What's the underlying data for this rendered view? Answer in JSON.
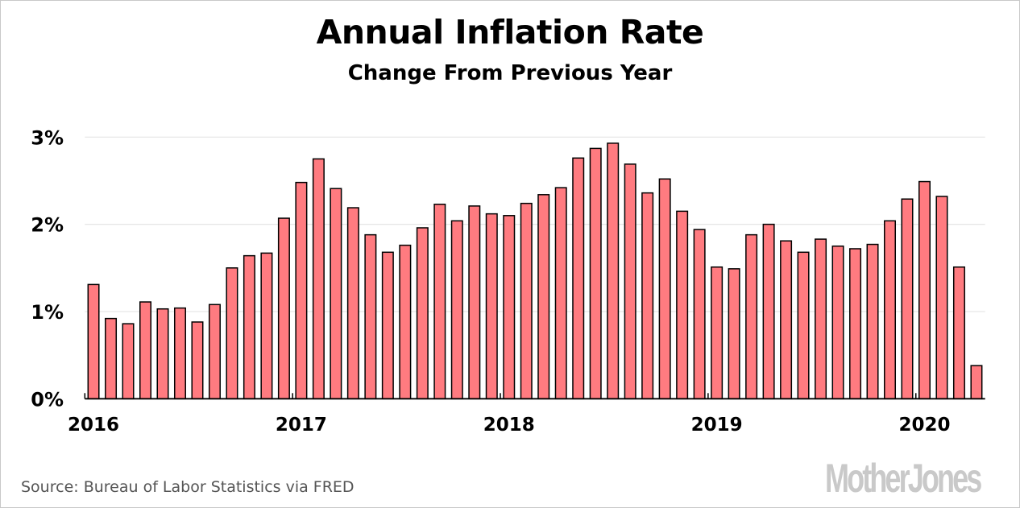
{
  "chart_data": {
    "type": "bar",
    "title": "Annual Inflation Rate",
    "subtitle": "Change From Previous Year",
    "xlabel": "",
    "ylabel": "",
    "ylim": [
      0,
      3
    ],
    "grid": true,
    "yticks": [
      {
        "value": 0,
        "label": "0%"
      },
      {
        "value": 1,
        "label": "1%"
      },
      {
        "value": 2,
        "label": "2%"
      },
      {
        "value": 3,
        "label": "3%"
      }
    ],
    "xticks": [
      "2016",
      "2017",
      "2018",
      "2019",
      "2020"
    ],
    "categories": [
      "2016-01",
      "2016-02",
      "2016-03",
      "2016-04",
      "2016-05",
      "2016-06",
      "2016-07",
      "2016-08",
      "2016-09",
      "2016-10",
      "2016-11",
      "2016-12",
      "2017-01",
      "2017-02",
      "2017-03",
      "2017-04",
      "2017-05",
      "2017-06",
      "2017-07",
      "2017-08",
      "2017-09",
      "2017-10",
      "2017-11",
      "2017-12",
      "2018-01",
      "2018-02",
      "2018-03",
      "2018-04",
      "2018-05",
      "2018-06",
      "2018-07",
      "2018-08",
      "2018-09",
      "2018-10",
      "2018-11",
      "2018-12",
      "2019-01",
      "2019-02",
      "2019-03",
      "2019-04",
      "2019-05",
      "2019-06",
      "2019-07",
      "2019-08",
      "2019-09",
      "2019-10",
      "2019-11",
      "2019-12",
      "2020-01",
      "2020-02",
      "2020-03",
      "2020-04"
    ],
    "values": [
      1.31,
      0.92,
      0.86,
      1.11,
      1.03,
      1.04,
      0.88,
      1.08,
      1.5,
      1.64,
      1.67,
      2.07,
      2.48,
      2.75,
      2.41,
      2.19,
      1.88,
      1.68,
      1.76,
      1.96,
      2.23,
      2.04,
      2.21,
      2.12,
      2.1,
      2.24,
      2.34,
      2.42,
      2.76,
      2.87,
      2.93,
      2.69,
      2.36,
      2.52,
      2.15,
      1.94,
      1.51,
      1.49,
      1.88,
      2.0,
      1.81,
      1.68,
      1.83,
      1.75,
      1.72,
      1.77,
      2.04,
      2.29,
      2.49,
      2.32,
      1.51,
      0.38
    ],
    "bar_color": "#ff7b80",
    "bar_stroke": "#000000",
    "grid_color": "#e6e6e6"
  },
  "footer": {
    "source": "Source: Bureau of Labor Statistics via FRED",
    "logo": "MotherJones"
  }
}
